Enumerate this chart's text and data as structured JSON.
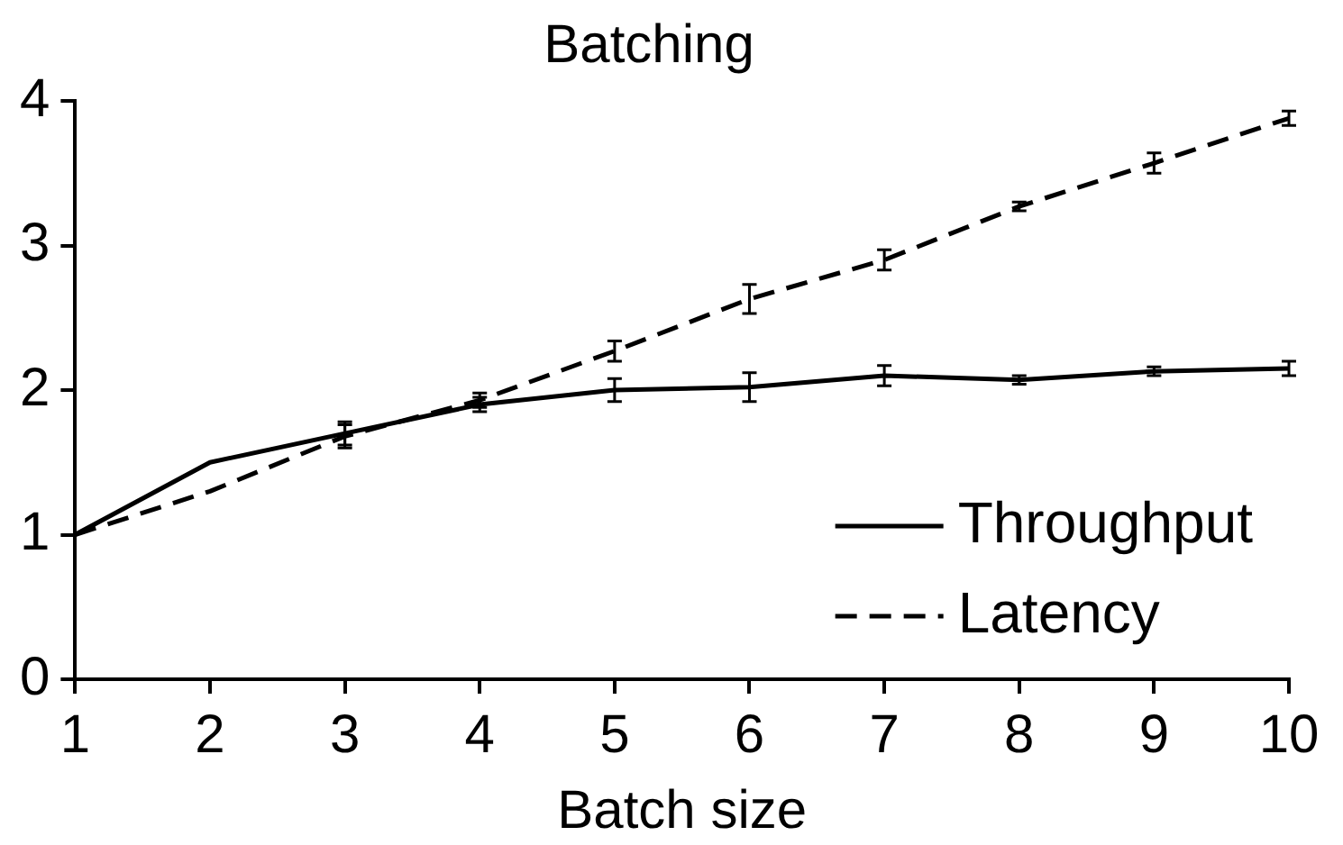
{
  "chart_data": {
    "type": "line",
    "title": "Batching",
    "xlabel": "Batch size",
    "x": [
      1,
      2,
      3,
      4,
      5,
      6,
      7,
      8,
      9,
      10
    ],
    "series": [
      {
        "name": "Throughput",
        "color": "#000000",
        "line_style": "solid",
        "values": [
          1,
          1.5,
          1.7,
          1.9,
          2.0,
          2.02,
          2.1,
          2.07,
          2.13,
          2.15
        ],
        "errors": [
          null,
          null,
          0.08,
          0.05,
          0.08,
          0.1,
          0.07,
          0.03,
          0.03,
          0.05
        ]
      },
      {
        "name": "Latency",
        "color": "#000000",
        "line_style": "dashed",
        "values": [
          1,
          1.3,
          1.68,
          1.93,
          2.27,
          2.63,
          2.9,
          3.27,
          3.57,
          3.88
        ],
        "errors": [
          null,
          null,
          0.08,
          0.05,
          0.07,
          0.1,
          0.07,
          0.03,
          0.07,
          0.05
        ]
      }
    ],
    "xlim": [
      1,
      10
    ],
    "xticks": [
      1,
      2,
      3,
      4,
      5,
      6,
      7,
      8,
      9,
      10
    ],
    "ylim": [
      0,
      4
    ],
    "yticks": [
      0,
      1,
      2,
      3,
      4
    ],
    "grid": false,
    "legend": "bottom right"
  }
}
